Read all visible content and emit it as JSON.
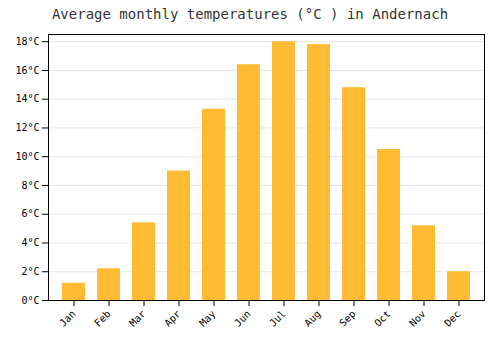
{
  "chart_data": {
    "type": "bar",
    "title": "Average monthly temperatures (°C ) in Andernach",
    "categories": [
      "Jan",
      "Feb",
      "Mar",
      "Apr",
      "May",
      "Jun",
      "Jul",
      "Aug",
      "Sep",
      "Oct",
      "Nov",
      "Dec"
    ],
    "values": [
      1.2,
      2.2,
      5.4,
      9.0,
      13.3,
      16.4,
      18.0,
      17.8,
      14.8,
      10.5,
      5.2,
      2.0
    ],
    "color": "#FFBB33",
    "ylim": [
      0,
      18.5
    ],
    "yticks": [
      {
        "value": 0,
        "label": "0°C"
      },
      {
        "value": 2,
        "label": "2°C"
      },
      {
        "value": 4,
        "label": "4°C"
      },
      {
        "value": 6,
        "label": "6°C"
      },
      {
        "value": 8,
        "label": "8°C"
      },
      {
        "value": 10,
        "label": "10°C"
      },
      {
        "value": 12,
        "label": "12°C"
      },
      {
        "value": 14,
        "label": "14°C"
      },
      {
        "value": 16,
        "label": "16°C"
      },
      {
        "value": 18,
        "label": "18°C"
      }
    ],
    "grid": true
  }
}
